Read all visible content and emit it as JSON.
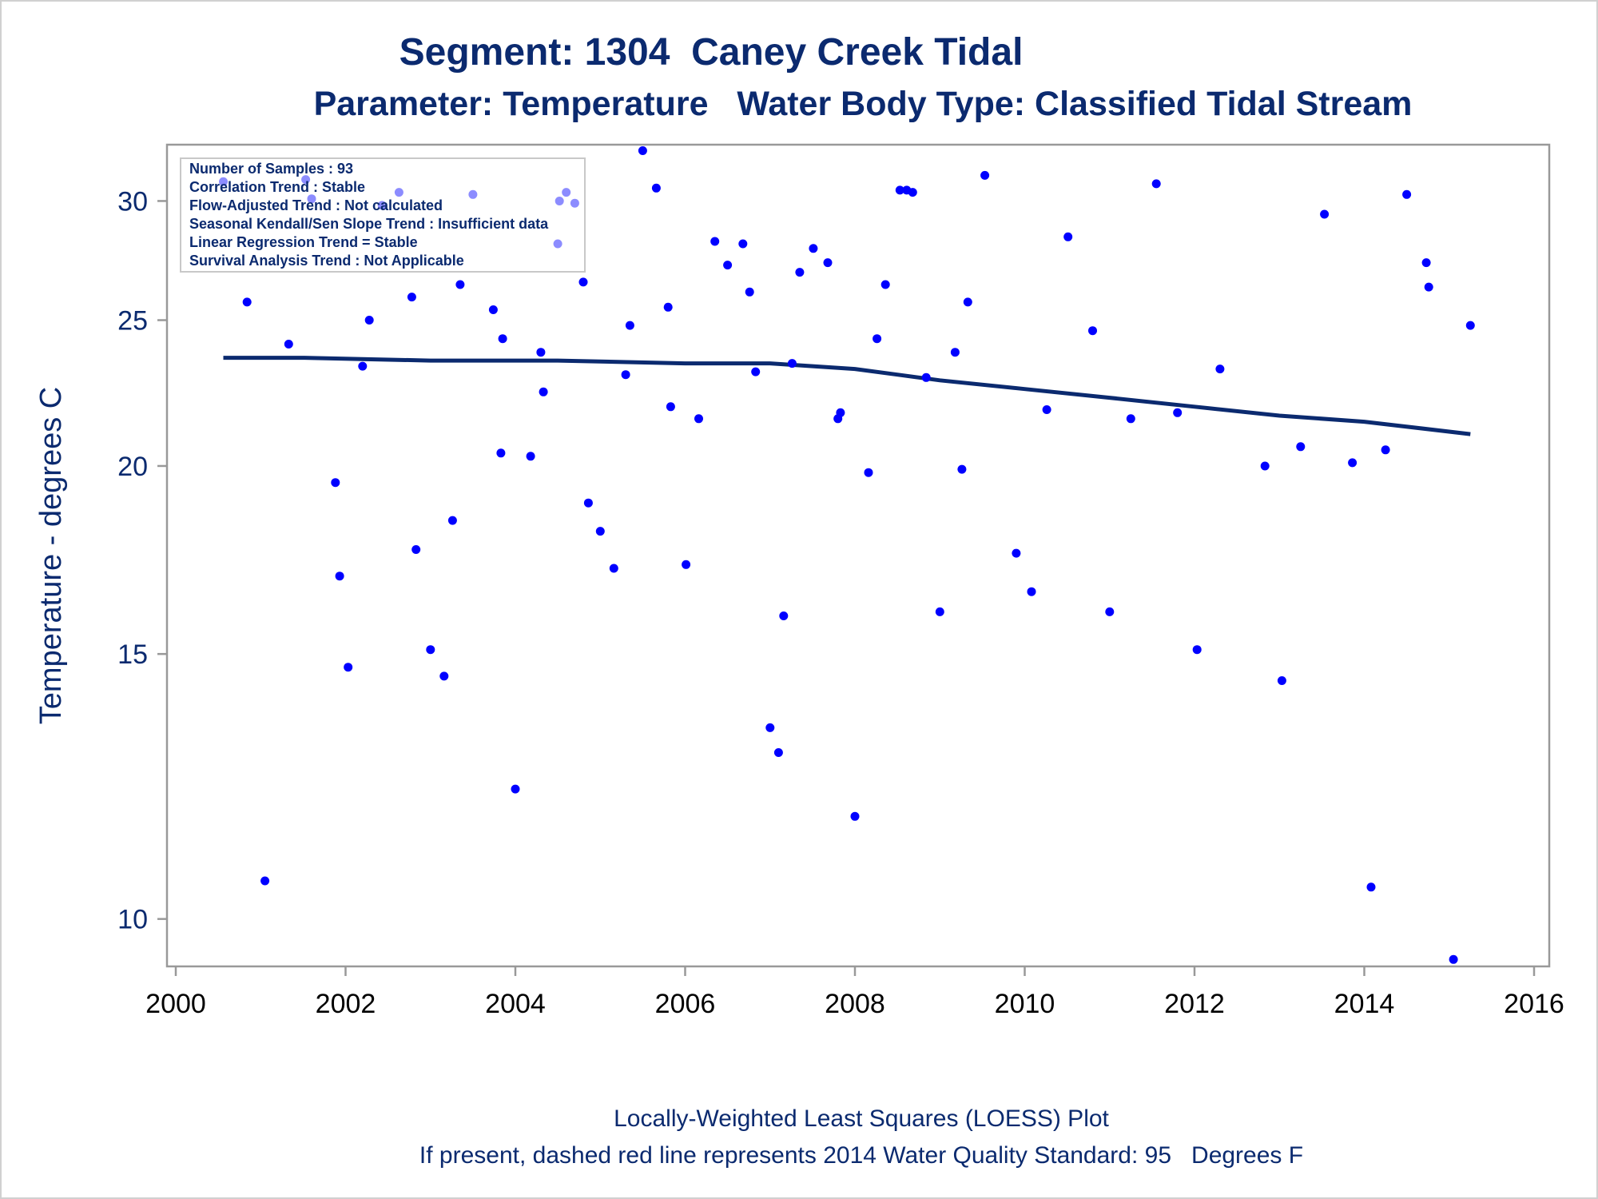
{
  "title": "Segment: 1304  Caney Creek Tidal",
  "subtitle": "Parameter: Temperature   Water Body Type: Classified Tidal Stream",
  "footnote1": "Locally-Weighted Least Squares (LOESS) Plot",
  "footnote2": "If present, dashed red line represents 2014 Water Quality Standard: 95   Degrees F",
  "stats": [
    "Number of Samples : 93",
    "Correlation Trend : Stable",
    "Flow-Adjusted Trend : Not calculated",
    "Seasonal Kendall/Sen Slope Trend : Insufficient data",
    "Linear Regression Trend = Stable",
    "Survival Analysis Trend : Not Applicable"
  ],
  "colors": {
    "text": "#0b2a6f",
    "points": "#0000ff",
    "loess": "#0b2a6f",
    "frame": "#999999"
  },
  "chart_data": {
    "type": "scatter",
    "xlabel": "",
    "ylabel": "Temperature - degrees C",
    "xlim": [
      2000,
      2016
    ],
    "ylim": [
      9.3,
      32.7
    ],
    "y_scale": "log",
    "x_ticks": [
      2000,
      2002,
      2004,
      2006,
      2008,
      2010,
      2012,
      2014,
      2016
    ],
    "y_ticks": [
      10,
      15,
      20,
      25,
      30
    ],
    "grid": false,
    "legend": "stats box top-left inside plot",
    "series": [
      {
        "type": "scatter",
        "points": [
          [
            2000.56,
            30.9
          ],
          [
            2000.84,
            25.7
          ],
          [
            2001.05,
            10.6
          ],
          [
            2001.33,
            24.1
          ],
          [
            2001.53,
            31.0
          ],
          [
            2001.6,
            30.1
          ],
          [
            2001.88,
            19.5
          ],
          [
            2001.93,
            16.9
          ],
          [
            2002.03,
            14.7
          ],
          [
            2002.2,
            23.3
          ],
          [
            2002.28,
            25.0
          ],
          [
            2002.43,
            29.8
          ],
          [
            2002.63,
            30.4
          ],
          [
            2002.78,
            25.9
          ],
          [
            2002.83,
            17.6
          ],
          [
            2003.0,
            15.1
          ],
          [
            2003.16,
            14.5
          ],
          [
            2003.26,
            18.4
          ],
          [
            2003.35,
            26.4
          ],
          [
            2003.5,
            30.3
          ],
          [
            2003.74,
            25.4
          ],
          [
            2003.83,
            20.4
          ],
          [
            2003.85,
            24.3
          ],
          [
            2004.0,
            12.2
          ],
          [
            2004.18,
            20.3
          ],
          [
            2004.3,
            23.8
          ],
          [
            2004.33,
            22.4
          ],
          [
            2004.5,
            28.1
          ],
          [
            2004.52,
            30.0
          ],
          [
            2004.6,
            30.4
          ],
          [
            2004.7,
            29.9
          ],
          [
            2004.8,
            26.5
          ],
          [
            2004.86,
            18.9
          ],
          [
            2005.0,
            18.1
          ],
          [
            2005.16,
            17.1
          ],
          [
            2005.3,
            23.0
          ],
          [
            2005.35,
            24.8
          ],
          [
            2005.5,
            32.4
          ],
          [
            2005.66,
            30.6
          ],
          [
            2005.8,
            25.5
          ],
          [
            2005.83,
            21.9
          ],
          [
            2006.01,
            17.2
          ],
          [
            2006.16,
            21.5
          ],
          [
            2006.35,
            28.2
          ],
          [
            2006.5,
            27.2
          ],
          [
            2006.68,
            28.1
          ],
          [
            2006.76,
            26.1
          ],
          [
            2006.83,
            23.1
          ],
          [
            2007.0,
            13.4
          ],
          [
            2007.1,
            12.9
          ],
          [
            2007.16,
            15.9
          ],
          [
            2007.26,
            23.4
          ],
          [
            2007.35,
            26.9
          ],
          [
            2007.51,
            27.9
          ],
          [
            2007.68,
            27.3
          ],
          [
            2007.8,
            21.5
          ],
          [
            2007.83,
            21.7
          ],
          [
            2008.0,
            11.7
          ],
          [
            2008.16,
            19.8
          ],
          [
            2008.26,
            24.3
          ],
          [
            2008.36,
            26.4
          ],
          [
            2008.53,
            30.5
          ],
          [
            2008.61,
            30.5
          ],
          [
            2008.68,
            30.4
          ],
          [
            2008.84,
            22.9
          ],
          [
            2009.0,
            16.0
          ],
          [
            2009.18,
            23.8
          ],
          [
            2009.26,
            19.9
          ],
          [
            2009.33,
            25.7
          ],
          [
            2009.53,
            31.2
          ],
          [
            2009.9,
            17.5
          ],
          [
            2010.08,
            16.5
          ],
          [
            2010.26,
            21.8
          ],
          [
            2010.51,
            28.4
          ],
          [
            2010.8,
            24.6
          ],
          [
            2011.0,
            16.0
          ],
          [
            2011.25,
            21.5
          ],
          [
            2011.55,
            30.8
          ],
          [
            2011.8,
            21.7
          ],
          [
            2012.03,
            15.1
          ],
          [
            2012.3,
            23.2
          ],
          [
            2012.83,
            20.0
          ],
          [
            2013.03,
            14.4
          ],
          [
            2013.25,
            20.6
          ],
          [
            2013.53,
            29.4
          ],
          [
            2013.86,
            20.1
          ],
          [
            2014.08,
            10.5
          ],
          [
            2014.25,
            20.5
          ],
          [
            2014.5,
            30.3
          ],
          [
            2014.73,
            27.3
          ],
          [
            2014.76,
            26.3
          ],
          [
            2015.05,
            9.4
          ],
          [
            2015.25,
            24.8
          ]
        ]
      },
      {
        "type": "line",
        "points": [
          [
            2000.56,
            23.6
          ],
          [
            2001.5,
            23.6
          ],
          [
            2003.0,
            23.5
          ],
          [
            2004.5,
            23.5
          ],
          [
            2006.0,
            23.4
          ],
          [
            2007.0,
            23.4
          ],
          [
            2007.5,
            23.3
          ],
          [
            2008.0,
            23.2
          ],
          [
            2008.5,
            23.0
          ],
          [
            2009.0,
            22.8
          ],
          [
            2010.0,
            22.5
          ],
          [
            2011.0,
            22.2
          ],
          [
            2012.0,
            21.9
          ],
          [
            2013.0,
            21.6
          ],
          [
            2014.0,
            21.4
          ],
          [
            2015.25,
            21.0
          ]
        ]
      }
    ]
  }
}
